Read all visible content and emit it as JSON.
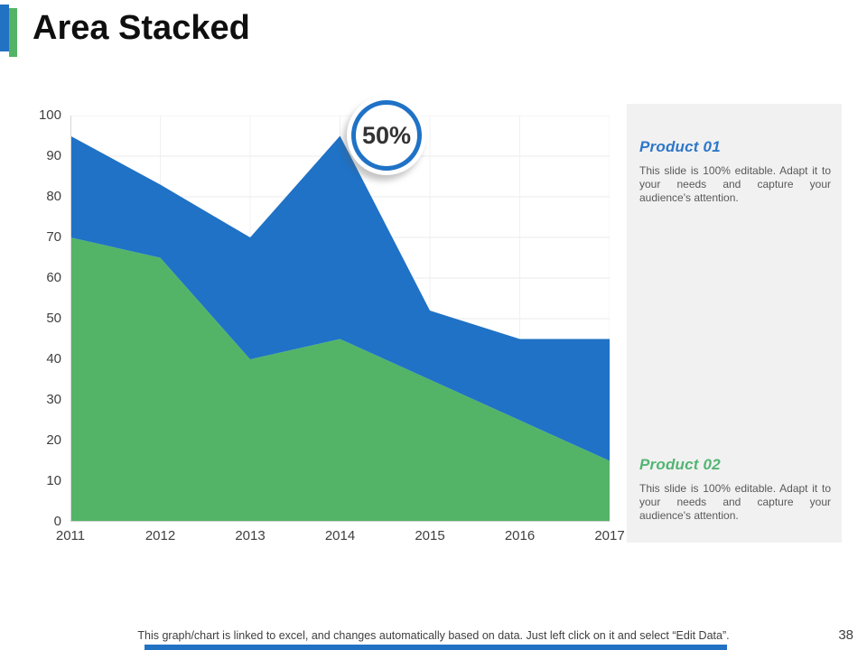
{
  "slide": {
    "title": "Area Stacked",
    "page_number": "38",
    "footer_note": "This graph/chart is linked to excel, and changes automatically based on data. Just left click on it and select “Edit Data”.",
    "accent_blue": "#2272C3",
    "accent_green": "#53B467",
    "bottom_bar_color": "#2272C3"
  },
  "sidebar": {
    "sections": [
      {
        "heading": "Product 01",
        "heading_color": "#2E77C9",
        "body": "This slide is 100% editable. Adapt it to your needs and capture your audience's attention."
      },
      {
        "heading": "Product 02",
        "heading_color": "#53B573",
        "body": "This slide is 100% editable. Adapt it to your needs and capture your audience's attention."
      }
    ]
  },
  "chart_data": {
    "type": "area",
    "stacked": true,
    "categories": [
      "2011",
      "2012",
      "2013",
      "2014",
      "2015",
      "2016",
      "2017"
    ],
    "series": [
      {
        "name": "Product 02",
        "color": "#53B467",
        "values": [
          70,
          65,
          40,
          45,
          35,
          25,
          15
        ]
      },
      {
        "name": "Product 01",
        "color": "#1F72C6",
        "values": [
          25,
          18,
          30,
          50,
          17,
          20,
          30
        ]
      }
    ],
    "stacked_totals": [
      95,
      83,
      70,
      95,
      52,
      45,
      45
    ],
    "ylim": [
      0,
      100
    ],
    "ytick_step": 10,
    "grid": true,
    "gridline_color_h": "#ebebeb",
    "gridline_color_v": "#f1f1f1",
    "axis_line_color": "#d6d6d6",
    "annotation": {
      "label": "50%",
      "at_category": "2014",
      "ring_color": "#1F72C6"
    }
  }
}
